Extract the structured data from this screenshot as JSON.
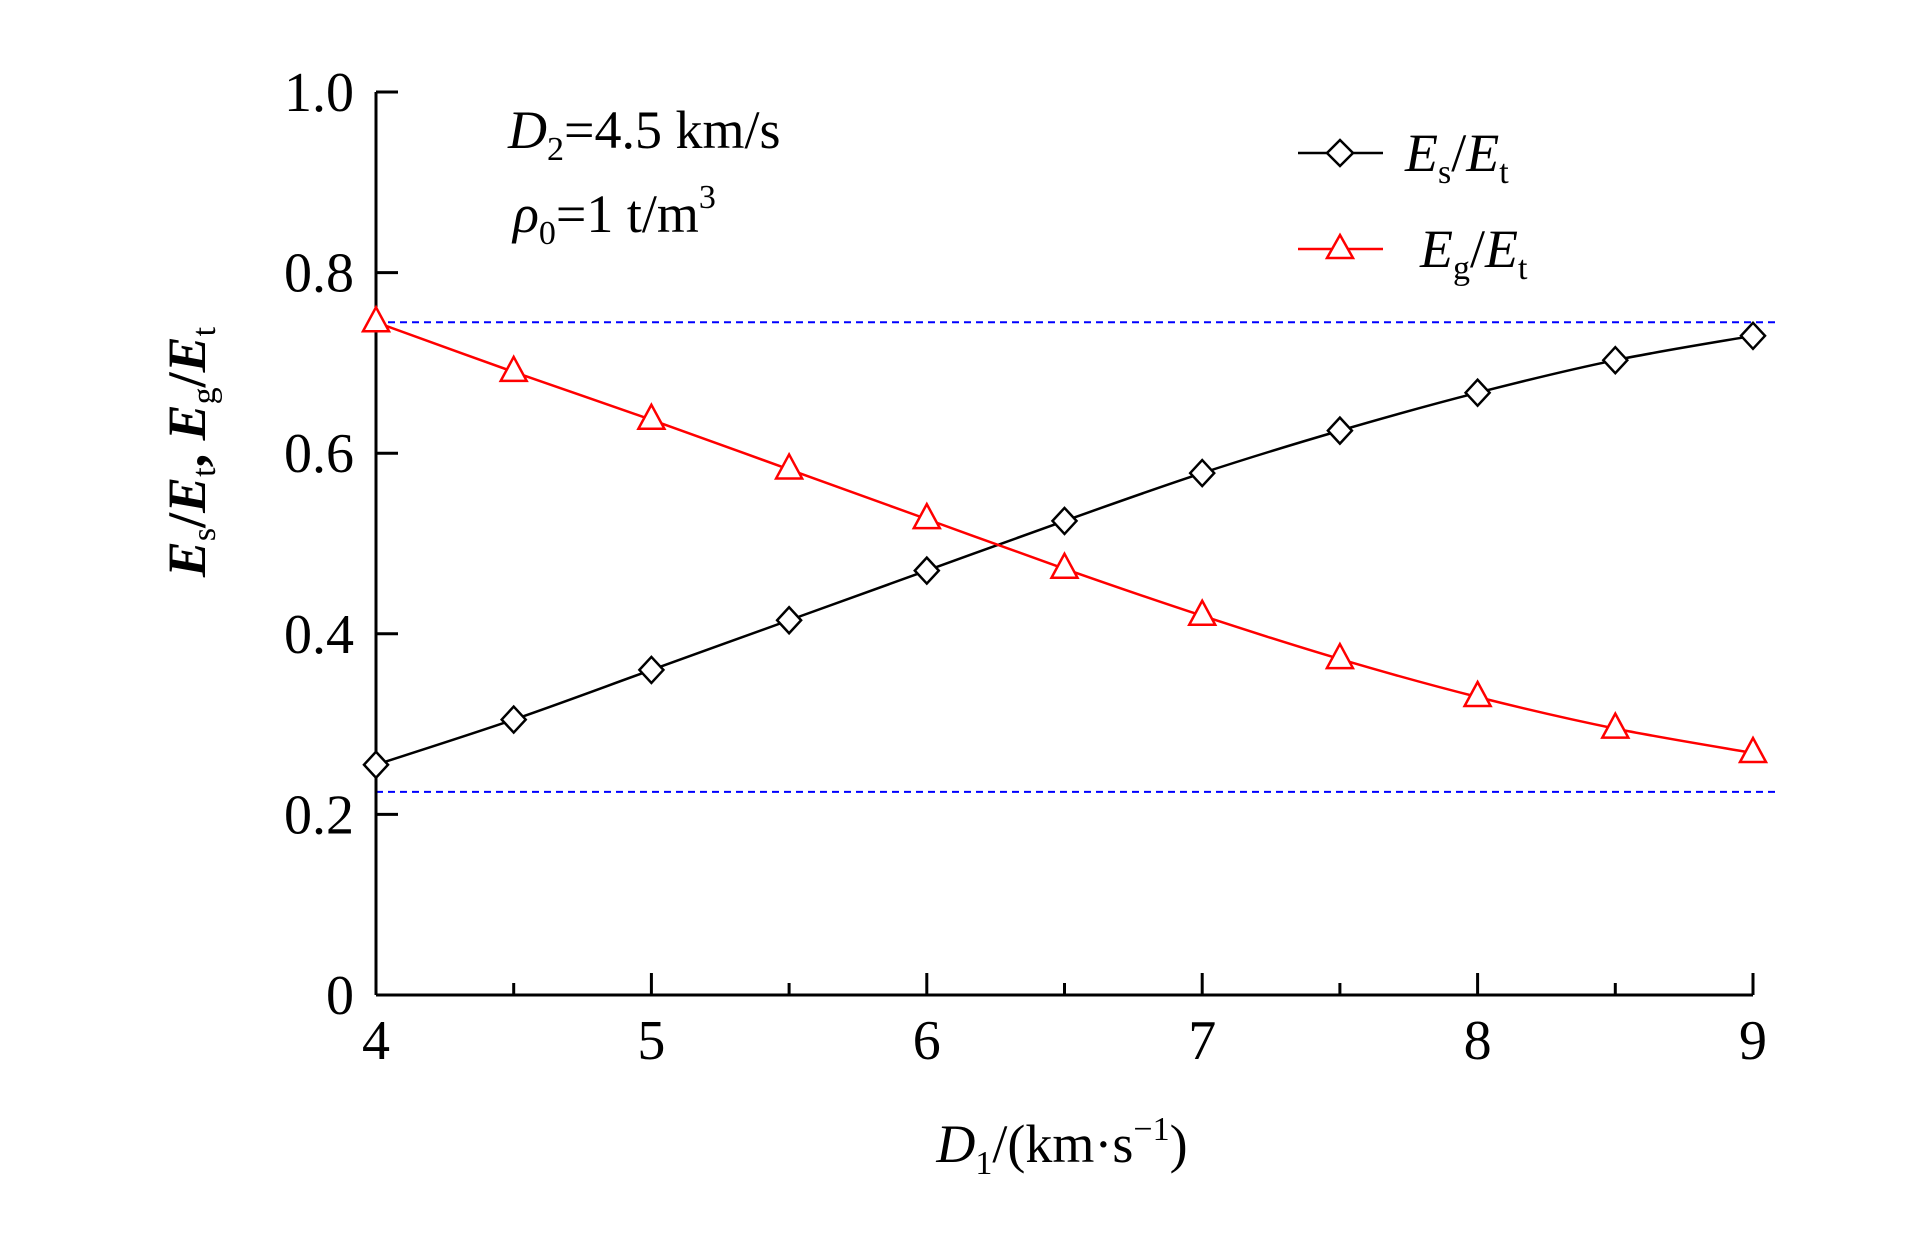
{
  "chart_data": {
    "type": "line",
    "xlim": [
      4,
      9
    ],
    "ylim": [
      0,
      1.0
    ],
    "x_ticks": [
      4,
      5,
      6,
      7,
      8,
      9
    ],
    "x_minor_ticks": [
      4.5,
      5.5,
      6.5,
      7.5,
      8.5
    ],
    "x_tick_labels": [
      "4",
      "5",
      "6",
      "7",
      "8",
      "9"
    ],
    "y_ticks": [
      0,
      0.2,
      0.4,
      0.6,
      0.8,
      1.0
    ],
    "y_tick_labels": [
      "0",
      "0.2",
      "0.4",
      "0.6",
      "0.8",
      "1.0"
    ],
    "xlabel": {
      "main": "D",
      "sub": "1",
      "rest": "/(km·s",
      "sup": "−1",
      "end": ")"
    },
    "ylabel": {
      "E1": "E",
      "s": "s",
      "slash1": "/",
      "E2": "E",
      "t1": "t",
      "sep": ", ",
      "E3": "E",
      "g": "g",
      "slash2": "/",
      "E4": "E",
      "t2": "t"
    },
    "annotations": {
      "line1": {
        "sym": "D",
        "sub": "2",
        "rest": "=4.5 km/s"
      },
      "line2": {
        "sym": "ρ",
        "sub": "0",
        "rest": "=1 t/m",
        "sup": "3"
      }
    },
    "grid": false,
    "legend_position": "top-right",
    "reference_lines": [
      0.745,
      0.225
    ],
    "reference_line_color": "#0000ff",
    "x": [
      4,
      4.5,
      5,
      5.5,
      6,
      6.5,
      7,
      7.5,
      8,
      8.5,
      9
    ],
    "series": [
      {
        "legend": {
          "E": "E",
          "sub1": "s",
          "slash": "/",
          "E2": "E",
          "sub2": "t"
        },
        "color": "#000000",
        "marker": "diamond",
        "values": [
          0.255,
          0.305,
          0.36,
          0.415,
          0.47,
          0.525,
          0.578,
          0.625,
          0.667,
          0.703,
          0.73
        ]
      },
      {
        "legend": {
          "E": "E",
          "sub1": "g",
          "slash": "/",
          "E2": "E",
          "sub2": "t"
        },
        "color": "#ff0000",
        "marker": "triangle",
        "values": [
          0.745,
          0.69,
          0.637,
          0.582,
          0.527,
          0.472,
          0.42,
          0.372,
          0.33,
          0.295,
          0.268
        ]
      }
    ]
  }
}
